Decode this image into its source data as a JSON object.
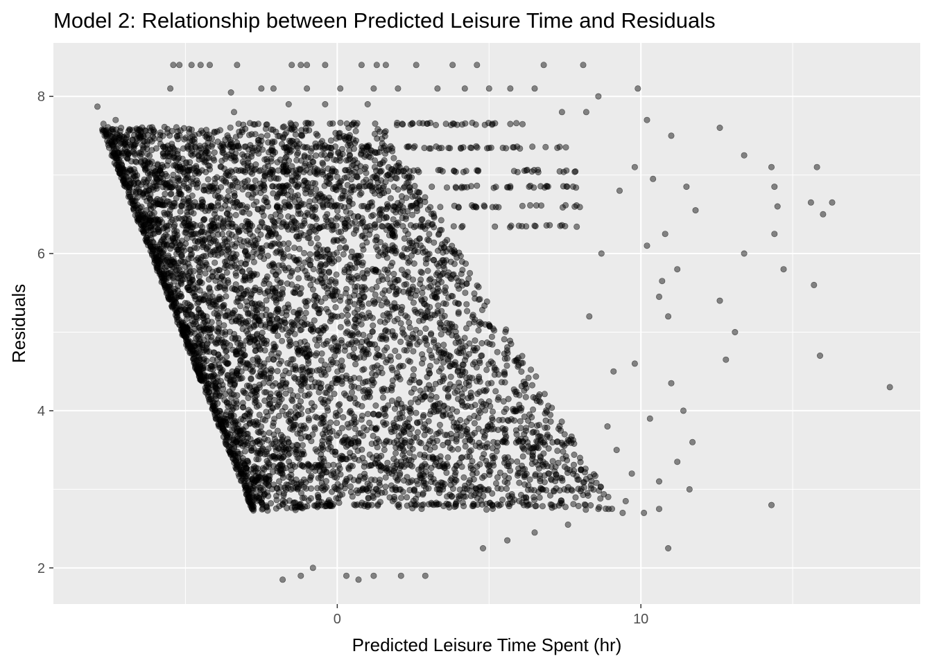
{
  "chart_data": {
    "type": "scatter",
    "title": "Model 2: Relationship between Predicted Leisure Time and Residuals",
    "xlabel": "Predicted Leisure Time Spent (hr)",
    "ylabel": "Residuals",
    "xlim": [
      -9.35,
      19.2
    ],
    "ylim": [
      1.54,
      8.68
    ],
    "x_ticks": [
      0,
      10
    ],
    "x_minor_ticks": [
      -5,
      5,
      15
    ],
    "y_ticks": [
      2,
      4,
      6,
      8
    ],
    "y_minor_ticks": [
      3,
      5,
      7
    ],
    "grid": true,
    "point_color": "#000000",
    "point_opacity": 0.45,
    "panel_color": "#ebebeb",
    "grid_color": "#ffffff",
    "series": [
      {
        "values": [
          [
            -7.9,
            7.87
          ],
          [
            -7.7,
            7.65
          ],
          [
            -7.3,
            7.7
          ],
          [
            -5.5,
            8.1
          ],
          [
            -5.4,
            8.4
          ],
          [
            -5.2,
            8.4
          ],
          [
            -4.8,
            8.4
          ],
          [
            -4.5,
            8.4
          ],
          [
            -4.2,
            8.4
          ],
          [
            -3.5,
            8.05
          ],
          [
            -3.4,
            7.8
          ],
          [
            -3.3,
            8.4
          ],
          [
            -2.5,
            8.1
          ],
          [
            -2.1,
            8.1
          ],
          [
            -1.6,
            7.9
          ],
          [
            -1.5,
            8.4
          ],
          [
            -1.2,
            8.4
          ],
          [
            -1.0,
            8.1
          ],
          [
            -1.0,
            8.4
          ],
          [
            -0.4,
            8.4
          ],
          [
            -0.4,
            7.9
          ],
          [
            0.1,
            8.1
          ],
          [
            0.8,
            8.4
          ],
          [
            1.0,
            7.9
          ],
          [
            1.2,
            8.1
          ],
          [
            1.3,
            8.4
          ],
          [
            1.6,
            8.4
          ],
          [
            2.0,
            8.1
          ],
          [
            2.6,
            8.4
          ],
          [
            3.3,
            8.1
          ],
          [
            3.8,
            8.4
          ],
          [
            4.2,
            8.1
          ],
          [
            4.6,
            8.4
          ],
          [
            5.0,
            8.1
          ],
          [
            5.7,
            8.1
          ],
          [
            6.5,
            8.1
          ],
          [
            6.8,
            8.4
          ],
          [
            7.4,
            7.8
          ],
          [
            8.1,
            8.4
          ],
          [
            8.2,
            7.8
          ],
          [
            8.6,
            8.0
          ],
          [
            9.9,
            8.1
          ],
          [
            10.2,
            7.7
          ],
          [
            11.0,
            7.5
          ],
          [
            12.6,
            7.6
          ],
          [
            13.4,
            7.25
          ],
          [
            14.3,
            7.1
          ],
          [
            14.4,
            6.85
          ],
          [
            14.4,
            6.25
          ],
          [
            14.5,
            6.6
          ],
          [
            15.6,
            6.65
          ],
          [
            15.8,
            7.1
          ],
          [
            16.0,
            6.5
          ],
          [
            16.3,
            6.65
          ],
          [
            13.4,
            6.0
          ],
          [
            14.7,
            5.8
          ],
          [
            15.7,
            5.6
          ],
          [
            15.9,
            4.7
          ],
          [
            18.2,
            4.3
          ],
          [
            13.1,
            5.0
          ],
          [
            12.8,
            4.65
          ],
          [
            12.6,
            5.4
          ],
          [
            11.8,
            6.55
          ],
          [
            11.5,
            6.85
          ],
          [
            11.2,
            5.8
          ],
          [
            10.9,
            5.2
          ],
          [
            10.7,
            5.65
          ],
          [
            11.0,
            4.35
          ],
          [
            11.4,
            4.0
          ],
          [
            11.7,
            3.6
          ],
          [
            11.2,
            3.35
          ],
          [
            10.6,
            3.1
          ],
          [
            11.6,
            3.0
          ],
          [
            10.1,
            2.7
          ],
          [
            10.6,
            2.75
          ],
          [
            9.4,
            2.7
          ],
          [
            10.9,
            2.25
          ],
          [
            14.3,
            2.8
          ],
          [
            2.1,
            1.9
          ],
          [
            2.9,
            1.9
          ],
          [
            0.7,
            1.85
          ],
          [
            -1.2,
            1.9
          ],
          [
            -1.8,
            1.85
          ],
          [
            -0.8,
            2.0
          ],
          [
            0.3,
            1.9
          ],
          [
            1.2,
            1.9
          ],
          [
            4.8,
            2.25
          ],
          [
            5.6,
            2.35
          ],
          [
            6.5,
            2.45
          ],
          [
            7.6,
            2.55
          ],
          [
            9.5,
            2.85
          ],
          [
            9.2,
            3.5
          ],
          [
            8.6,
            2.75
          ],
          [
            8.9,
            3.8
          ],
          [
            9.1,
            4.5
          ],
          [
            8.3,
            5.2
          ],
          [
            8.7,
            6.0
          ],
          [
            9.3,
            6.8
          ],
          [
            9.8,
            7.1
          ],
          [
            10.4,
            6.95
          ],
          [
            10.8,
            6.25
          ],
          [
            10.2,
            6.1
          ],
          [
            10.6,
            5.45
          ],
          [
            9.8,
            4.6
          ],
          [
            10.3,
            3.9
          ],
          [
            9.7,
            3.2
          ]
        ]
      }
    ],
    "bands": [
      {
        "y": 7.65,
        "x0": -3.8,
        "x1": 6.3,
        "n": 55
      },
      {
        "y": 7.35,
        "x0": -7.3,
        "x1": 7.6,
        "n": 80
      },
      {
        "y": 7.05,
        "x0": -6.8,
        "x1": 7.9,
        "n": 70
      },
      {
        "y": 6.85,
        "x0": -6.6,
        "x1": 8.0,
        "n": 70
      },
      {
        "y": 6.6,
        "x0": -6.2,
        "x1": 8.2,
        "n": 75
      },
      {
        "y": 6.35,
        "x0": -5.9,
        "x1": 7.9,
        "n": 60
      },
      {
        "y": 2.8,
        "x0": -2.5,
        "x1": 8.4,
        "n": 55
      },
      {
        "y": 3.0,
        "x0": -2.9,
        "x1": 8.0,
        "n": 45
      },
      {
        "y": 3.3,
        "x0": -3.2,
        "x1": 7.4,
        "n": 40
      },
      {
        "y": 3.6,
        "x0": -3.5,
        "x1": 7.8,
        "n": 40
      }
    ],
    "edge": {
      "x_top": -7.5,
      "y_top": 7.33,
      "x_bottom": -2.8,
      "y_bottom": 2.73,
      "n": 160
    },
    "cloud": {
      "n": 5200,
      "seed": 42
    }
  }
}
